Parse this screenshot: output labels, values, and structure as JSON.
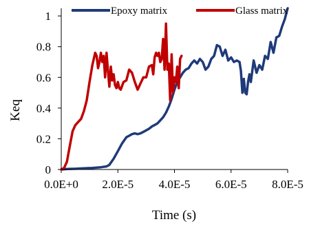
{
  "chart_data": {
    "type": "line",
    "title": "",
    "xlabel": "Time (s)",
    "ylabel": "Keq",
    "xlim": [
      0,
      8e-05
    ],
    "ylim": [
      0,
      1.05
    ],
    "grid": false,
    "legend_position": "top",
    "x_ticks": [
      0,
      2e-05,
      4e-05,
      6e-05,
      8e-05
    ],
    "x_tick_labels": [
      "0.0E+0",
      "2.0E-5",
      "4.0E-5",
      "6.0E-5",
      "8.0E-5"
    ],
    "y_ticks": [
      0,
      0.2,
      0.4,
      0.6,
      0.8,
      1
    ],
    "y_tick_labels": [
      "0",
      "0.2",
      "0.4",
      "0.6",
      "0.8",
      "1"
    ],
    "series": [
      {
        "name": "Epoxy matrix",
        "color": "#1f3a7a",
        "points": [
          [
            0,
            0
          ],
          [
            2e-06,
            0.003
          ],
          [
            5e-06,
            0.005
          ],
          [
            8e-06,
            0.008
          ],
          [
            1.1e-05,
            0.01
          ],
          [
            1.4e-05,
            0.015
          ],
          [
            1.6e-05,
            0.02
          ],
          [
            1.7e-05,
            0.03
          ],
          [
            1.85e-05,
            0.07
          ],
          [
            2e-05,
            0.12
          ],
          [
            2.15e-05,
            0.17
          ],
          [
            2.3e-05,
            0.21
          ],
          [
            2.4e-05,
            0.22
          ],
          [
            2.5e-05,
            0.23
          ],
          [
            2.6e-05,
            0.235
          ],
          [
            2.7e-05,
            0.23
          ],
          [
            2.8e-05,
            0.235
          ],
          [
            2.9e-05,
            0.245
          ],
          [
            3e-05,
            0.255
          ],
          [
            3.1e-05,
            0.265
          ],
          [
            3.2e-05,
            0.28
          ],
          [
            3.3e-05,
            0.29
          ],
          [
            3.4e-05,
            0.3
          ],
          [
            3.5e-05,
            0.32
          ],
          [
            3.6e-05,
            0.34
          ],
          [
            3.7e-05,
            0.37
          ],
          [
            3.8e-05,
            0.41
          ],
          [
            3.9e-05,
            0.46
          ],
          [
            4e-05,
            0.52
          ],
          [
            4.1e-05,
            0.57
          ],
          [
            4.2e-05,
            0.6
          ],
          [
            4.3e-05,
            0.63
          ],
          [
            4.4e-05,
            0.65
          ],
          [
            4.5e-05,
            0.66
          ],
          [
            4.6e-05,
            0.69
          ],
          [
            4.7e-05,
            0.71
          ],
          [
            4.8e-05,
            0.69
          ],
          [
            4.9e-05,
            0.72
          ],
          [
            5e-05,
            0.7
          ],
          [
            5.1e-05,
            0.65
          ],
          [
            5.2e-05,
            0.67
          ],
          [
            5.3e-05,
            0.72
          ],
          [
            5.4e-05,
            0.74
          ],
          [
            5.5e-05,
            0.81
          ],
          [
            5.6e-05,
            0.8
          ],
          [
            5.7e-05,
            0.74
          ],
          [
            5.8e-05,
            0.78
          ],
          [
            5.9e-05,
            0.71
          ],
          [
            6e-05,
            0.73
          ],
          [
            6.1e-05,
            0.7
          ],
          [
            6.2e-05,
            0.71
          ],
          [
            6.3e-05,
            0.7
          ],
          [
            6.35e-05,
            0.64
          ],
          [
            6.4e-05,
            0.5
          ],
          [
            6.45e-05,
            0.59
          ],
          [
            6.5e-05,
            0.5
          ],
          [
            6.55e-05,
            0.49
          ],
          [
            6.6e-05,
            0.57
          ],
          [
            6.65e-05,
            0.62
          ],
          [
            6.7e-05,
            0.57
          ],
          [
            6.8e-05,
            0.71
          ],
          [
            6.9e-05,
            0.63
          ],
          [
            7e-05,
            0.68
          ],
          [
            7.1e-05,
            0.65
          ],
          [
            7.2e-05,
            0.74
          ],
          [
            7.3e-05,
            0.72
          ],
          [
            7.4e-05,
            0.83
          ],
          [
            7.5e-05,
            0.76
          ],
          [
            7.6e-05,
            0.86
          ],
          [
            7.7e-05,
            0.87
          ],
          [
            7.8e-05,
            0.93
          ],
          [
            7.9e-05,
            0.98
          ],
          [
            8e-05,
            1.05
          ]
        ]
      },
      {
        "name": "Glass matrix",
        "color": "#c00000",
        "points": [
          [
            0,
            0
          ],
          [
            1e-06,
            0.01
          ],
          [
            2e-06,
            0.05
          ],
          [
            3e-06,
            0.15
          ],
          [
            4e-06,
            0.25
          ],
          [
            5e-06,
            0.29
          ],
          [
            6e-06,
            0.31
          ],
          [
            7e-06,
            0.33
          ],
          [
            8e-06,
            0.38
          ],
          [
            9e-06,
            0.45
          ],
          [
            1e-05,
            0.57
          ],
          [
            1.1e-05,
            0.68
          ],
          [
            1.2e-05,
            0.76
          ],
          [
            1.25e-05,
            0.74
          ],
          [
            1.3e-05,
            0.66
          ],
          [
            1.35e-05,
            0.7
          ],
          [
            1.4e-05,
            0.76
          ],
          [
            1.45e-05,
            0.7
          ],
          [
            1.5e-05,
            0.74
          ],
          [
            1.55e-05,
            0.6
          ],
          [
            1.6e-05,
            0.76
          ],
          [
            1.65e-05,
            0.64
          ],
          [
            1.7e-05,
            0.54
          ],
          [
            1.75e-05,
            0.67
          ],
          [
            1.8e-05,
            0.58
          ],
          [
            1.85e-05,
            0.62
          ],
          [
            1.9e-05,
            0.55
          ],
          [
            1.95e-05,
            0.53
          ],
          [
            2e-05,
            0.57
          ],
          [
            2.05e-05,
            0.53
          ],
          [
            2.1e-05,
            0.52
          ],
          [
            2.2e-05,
            0.57
          ],
          [
            2.3e-05,
            0.58
          ],
          [
            2.4e-05,
            0.65
          ],
          [
            2.5e-05,
            0.63
          ],
          [
            2.6e-05,
            0.57
          ],
          [
            2.7e-05,
            0.52
          ],
          [
            2.8e-05,
            0.56
          ],
          [
            2.9e-05,
            0.6
          ],
          [
            3e-05,
            0.6
          ],
          [
            3.1e-05,
            0.67
          ],
          [
            3.2e-05,
            0.68
          ],
          [
            3.25e-05,
            0.62
          ],
          [
            3.3e-05,
            0.73
          ],
          [
            3.35e-05,
            0.76
          ],
          [
            3.4e-05,
            0.74
          ],
          [
            3.45e-05,
            0.76
          ],
          [
            3.5e-05,
            0.7
          ],
          [
            3.55e-05,
            0.72
          ],
          [
            3.6e-05,
            0.85
          ],
          [
            3.65e-05,
            0.65
          ],
          [
            3.7e-05,
            0.95
          ],
          [
            3.75e-05,
            0.65
          ],
          [
            3.8e-05,
            0.69
          ],
          [
            3.85e-05,
            0.45
          ],
          [
            3.9e-05,
            0.75
          ],
          [
            3.95e-05,
            0.5
          ],
          [
            4e-05,
            0.6
          ],
          [
            4.05e-05,
            0.57
          ],
          [
            4.1e-05,
            0.67
          ],
          [
            4.15e-05,
            0.53
          ],
          [
            4.2e-05,
            0.72
          ],
          [
            4.25e-05,
            0.74
          ]
        ]
      }
    ]
  }
}
